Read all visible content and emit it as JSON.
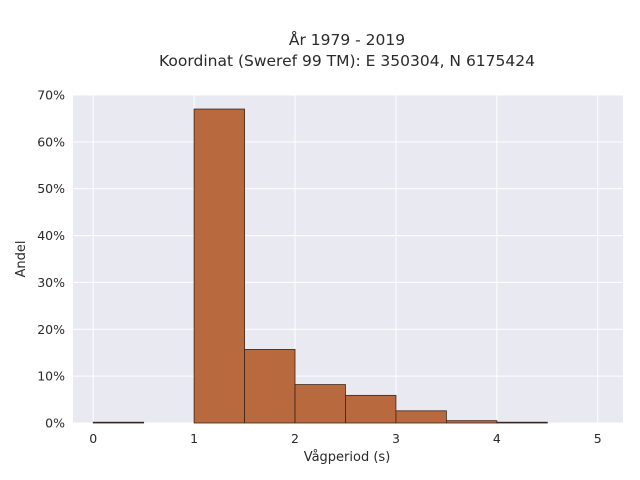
{
  "chart_data": {
    "type": "bar",
    "title_lines": [
      "År 1979 - 2019",
      "Koordinat (Sweref 99 TM): E 350304, N 6175424"
    ],
    "xlabel": "Vågperiod (s)",
    "ylabel": "Andel",
    "bin_edges": [
      0,
      0.5,
      1,
      1.5,
      2,
      2.5,
      3,
      3.5,
      4,
      4.5
    ],
    "bin_width": 0.5,
    "values": [
      0.1,
      0,
      67.0,
      15.7,
      8.2,
      5.9,
      2.6,
      0.5,
      0.1
    ],
    "xlim": [
      -0.2,
      5.25
    ],
    "ylim": [
      0,
      70
    ],
    "xticks": [
      0,
      1,
      2,
      3,
      4,
      5
    ],
    "xtick_labels": [
      "0",
      "1",
      "2",
      "3",
      "4",
      "5"
    ],
    "yticks": [
      0,
      10,
      20,
      30,
      40,
      50,
      60,
      70
    ],
    "ytick_labels": [
      "0%",
      "10%",
      "20%",
      "30%",
      "40%",
      "50%",
      "60%",
      "70%"
    ],
    "grid": true,
    "colors": {
      "plot_background": "#e9e9f1",
      "grid": "#ffffff",
      "bar_fill": "#b86a3e",
      "bar_edge": "#3b2418"
    }
  }
}
